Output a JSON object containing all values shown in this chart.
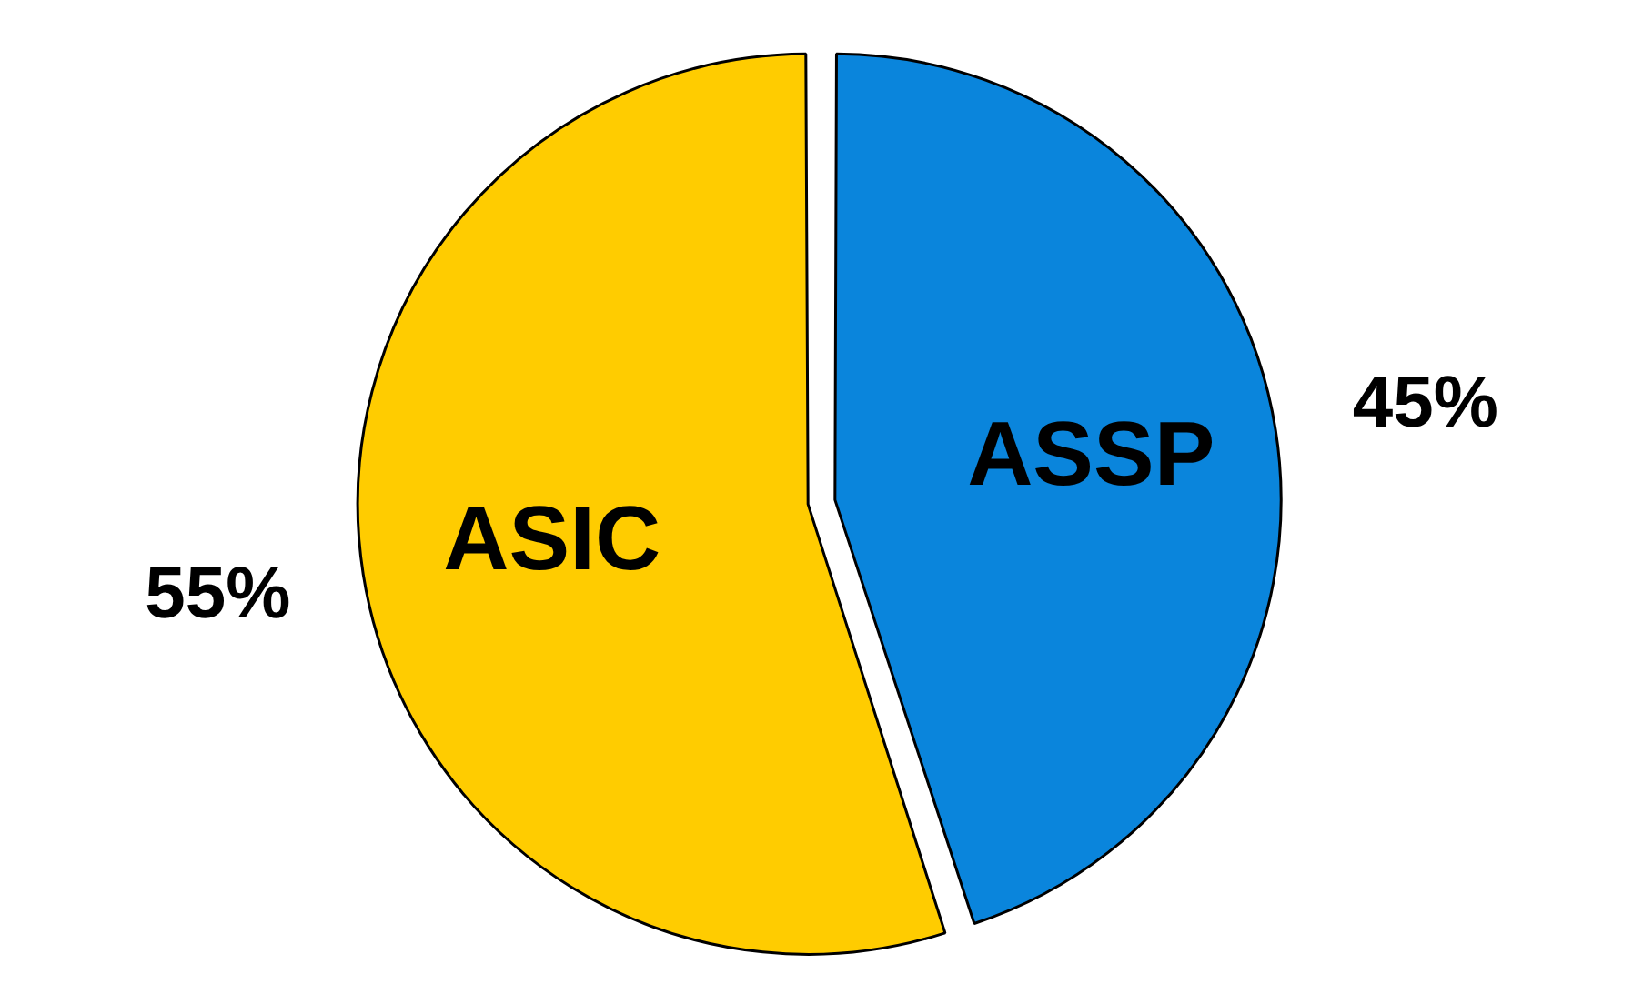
{
  "chart_data": {
    "type": "pie",
    "categories": [
      "ASSP",
      "ASIC"
    ],
    "values": [
      45,
      55
    ],
    "colors": [
      "#0a85dc",
      "#ffcc00"
    ],
    "value_labels": [
      "45%",
      "55%"
    ],
    "legend": false
  }
}
